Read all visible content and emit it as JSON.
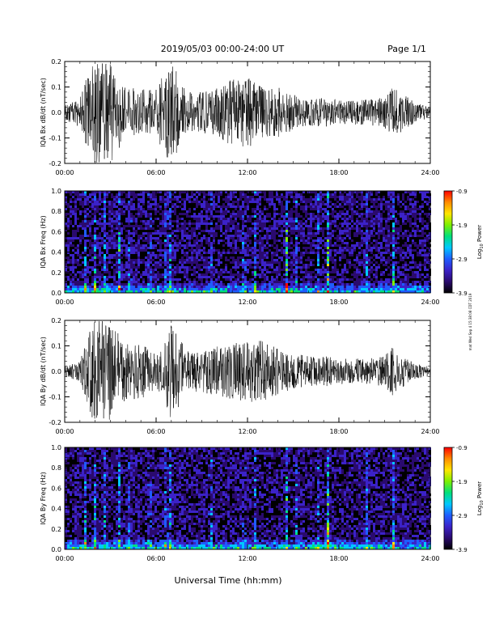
{
  "header": {
    "title": "2019/05/03  00:00-24:00 UT",
    "page_label": "Page 1/1"
  },
  "side_note": "mat Wed Sep 4 15:38:08 CDT 2019",
  "x_axis": {
    "title": "Universal Time (hh:mm)",
    "ticks": [
      "00:00",
      "06:00",
      "12:00",
      "18:00",
      "24:00"
    ]
  },
  "colors": {
    "trace": "#000000",
    "colormap": [
      "#000000",
      "#2a0a6e",
      "#3b22c8",
      "#1f5cff",
      "#00c8ff",
      "#00e07a",
      "#7df000",
      "#ffe600",
      "#ff8c00",
      "#ff0000"
    ]
  },
  "colorbar": {
    "label": "Log10 Power",
    "label_main": "Log",
    "label_sub": "10",
    "label_rest": " Power",
    "ticks": [
      "-0.9",
      "-1.9",
      "-2.9",
      "-3.9"
    ],
    "range": [
      -3.9,
      -0.9
    ]
  },
  "chart_data": [
    {
      "type": "line",
      "title": "",
      "ylabel": "IQA Bx dB/dt (nT/sec)",
      "xlabel": "",
      "xlim": [
        0,
        24
      ],
      "ylim": [
        -0.2,
        0.2
      ],
      "xticks": [
        "00:00",
        "06:00",
        "12:00",
        "18:00",
        "24:00"
      ],
      "yticks": [
        "0.2",
        "0.1",
        "0.0",
        "-0.1",
        "-0.2"
      ],
      "series": [
        {
          "x": [
            0,
            1,
            1.5,
            2,
            2.5,
            3,
            4,
            5,
            6,
            6.5,
            7,
            8,
            9,
            10,
            11,
            12,
            13,
            14,
            15,
            16,
            17,
            18,
            19,
            20,
            21,
            21.5,
            22,
            23,
            24
          ],
          "values": [
            0.03,
            0.06,
            0.15,
            0.2,
            0.2,
            0.2,
            0.1,
            0.09,
            0.09,
            0.16,
            0.2,
            0.08,
            0.08,
            0.1,
            0.13,
            0.14,
            0.1,
            0.1,
            0.07,
            0.05,
            0.06,
            0.05,
            0.05,
            0.05,
            0.06,
            0.1,
            0.08,
            0.04,
            0.02
          ]
        }
      ]
    },
    {
      "type": "heatmap",
      "title": "",
      "ylabel": "IQA Bx Freq (Hz)",
      "xlabel": "",
      "xlim": [
        0,
        24
      ],
      "ylim": [
        0,
        1.0
      ],
      "xticks": [
        "00:00",
        "06:00",
        "12:00",
        "18:00",
        "24:00"
      ],
      "yticks": [
        "1.0",
        "0.8",
        "0.6",
        "0.4",
        "0.2",
        "0.0"
      ],
      "zlim": [
        -3.9,
        -0.9
      ],
      "intense_times": [
        1.3,
        1.9,
        2.5,
        3.5,
        4.2,
        5.5,
        6.6,
        6.9,
        9.5,
        11.7,
        12.4,
        14.5,
        15.1,
        16.6,
        19.8,
        21.5
      ],
      "feature_times": [
        2.5,
        6.6,
        6.9,
        14.5,
        17.2
      ]
    },
    {
      "type": "line",
      "title": "",
      "ylabel": "IQA By dB/dt (nT/sec)",
      "xlabel": "",
      "xlim": [
        0,
        24
      ],
      "ylim": [
        -0.2,
        0.2
      ],
      "xticks": [
        "00:00",
        "06:00",
        "12:00",
        "18:00",
        "24:00"
      ],
      "yticks": [
        "0.2",
        "0.1",
        "0.0",
        "-0.1",
        "-0.2"
      ],
      "series": [
        {
          "x": [
            0,
            1,
            1.5,
            2,
            2.5,
            3,
            4,
            5,
            6,
            6.5,
            7,
            8,
            9,
            10,
            11,
            12,
            13,
            14,
            15,
            16,
            17,
            18,
            19,
            20,
            21,
            21.5,
            22,
            23,
            24
          ],
          "values": [
            0.02,
            0.04,
            0.15,
            0.2,
            0.2,
            0.2,
            0.11,
            0.11,
            0.07,
            0.1,
            0.2,
            0.08,
            0.08,
            0.1,
            0.11,
            0.12,
            0.12,
            0.09,
            0.07,
            0.06,
            0.06,
            0.05,
            0.05,
            0.05,
            0.06,
            0.1,
            0.07,
            0.03,
            0.02
          ]
        }
      ]
    },
    {
      "type": "heatmap",
      "title": "",
      "ylabel": "IQA By Freq (Hz)",
      "xlabel": "",
      "xlim": [
        0,
        24
      ],
      "ylim": [
        0,
        1.0
      ],
      "xticks": [
        "00:00",
        "06:00",
        "12:00",
        "18:00",
        "24:00"
      ],
      "yticks": [
        "1.0",
        "0.8",
        "0.6",
        "0.4",
        "0.2",
        "0.0"
      ],
      "zlim": [
        -3.9,
        -0.9
      ],
      "intense_times": [
        1.3,
        1.9,
        2.5,
        3.5,
        4.2,
        5.5,
        6.6,
        6.9,
        9.5,
        11.7,
        12.4,
        14.5,
        15.1,
        16.6,
        19.8,
        21.5
      ],
      "feature_times": [
        2.5,
        6.6,
        6.9,
        17.2
      ]
    }
  ]
}
